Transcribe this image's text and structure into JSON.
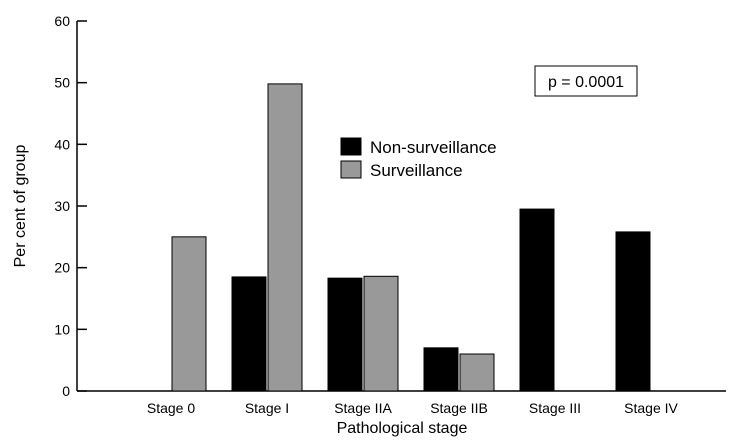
{
  "chart_data": {
    "type": "bar",
    "title": "",
    "xlabel": "Pathological stage",
    "ylabel": "Per cent of group",
    "ylim": [
      0,
      60
    ],
    "yticks": [
      0,
      10,
      20,
      30,
      40,
      50,
      60
    ],
    "categories": [
      "Stage 0",
      "Stage I",
      "Stage IIA",
      "Stage IIB",
      "Stage III",
      "Stage IV"
    ],
    "series": [
      {
        "name": "Non-surveillance",
        "color": "#000000",
        "values": [
          0,
          18.5,
          18.3,
          7,
          29.5,
          25.8
        ]
      },
      {
        "name": "Surveillance",
        "color": "#999999",
        "values": [
          25,
          49.8,
          18.6,
          6,
          0,
          0
        ]
      }
    ],
    "legend_position": "center",
    "grid": false,
    "annotation": "p = 0.0001"
  }
}
